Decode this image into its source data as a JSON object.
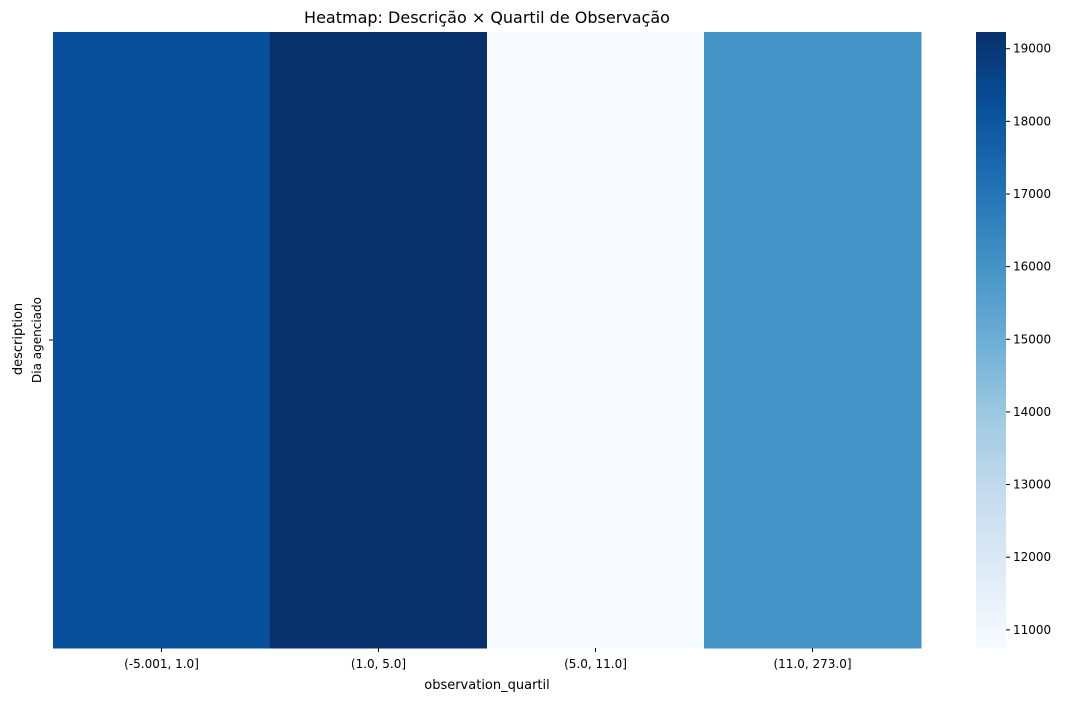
{
  "chart_data": {
    "type": "heatmap",
    "title": "Heatmap: Descrição × Quartil de Observação",
    "xlabel": "observation_quartil",
    "ylabel": "description",
    "x_categories": [
      "(-5.001, 1.0]",
      "(1.0, 5.0]",
      "(5.0, 11.0]",
      "(11.0, 273.0]"
    ],
    "y_categories": [
      "Dia agenciado"
    ],
    "values": [
      [
        18200,
        19200,
        10750,
        16000
      ]
    ],
    "colormap": "Blues",
    "colorbar": {
      "min": 10750,
      "max": 19230,
      "ticks": [
        11000,
        12000,
        13000,
        14000,
        15000,
        16000,
        17000,
        18000,
        19000
      ]
    }
  }
}
